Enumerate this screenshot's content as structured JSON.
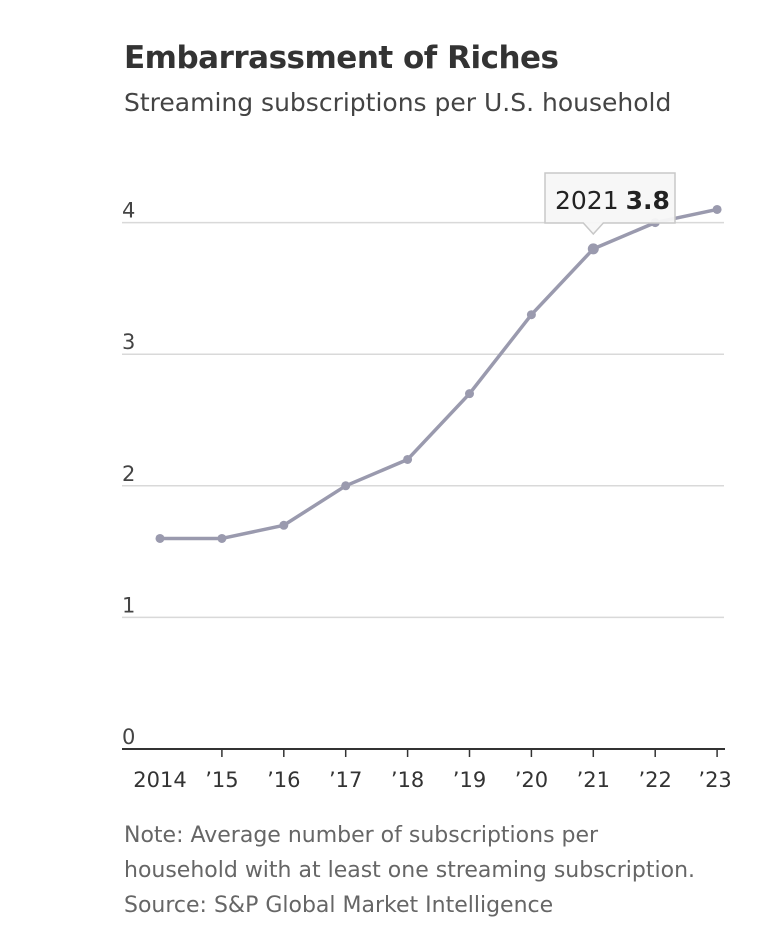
{
  "header": {
    "title": "Embarrassment of Riches",
    "subtitle": "Streaming subscriptions per U.S. household"
  },
  "tooltip": {
    "year": "2021",
    "value": "3.8"
  },
  "footer": {
    "note_line1": "Note: Average number of subscriptions per",
    "note_line2": "household with at least one streaming subscription.",
    "source": "Source: S&P Global Market Intelligence"
  },
  "colors": {
    "line": "#9a9aae",
    "grid": "#d9d9d9",
    "axis": "#333333",
    "tooltip_bg": "#f7f7f7",
    "tooltip_border": "#c8c8c8"
  },
  "chart_data": {
    "type": "line",
    "title": "Embarrassment of Riches",
    "subtitle": "Streaming subscriptions per U.S. household",
    "xlabel": "",
    "ylabel": "",
    "x": [
      2014,
      2015,
      2016,
      2017,
      2018,
      2019,
      2020,
      2021,
      2022,
      2023
    ],
    "x_tick_labels": [
      "2014",
      "’15",
      "’16",
      "’17",
      "’18",
      "’19",
      "’20",
      "’21",
      "’22",
      "’23"
    ],
    "y_ticks": [
      0,
      1,
      2,
      3,
      4
    ],
    "ylim": [
      0,
      4.1
    ],
    "grid": true,
    "series": [
      {
        "values": [
          1.6,
          1.6,
          1.7,
          2.0,
          2.2,
          2.7,
          3.3,
          3.8,
          4.0,
          4.1
        ]
      }
    ],
    "highlight": {
      "x": 2021,
      "value": 3.8
    }
  }
}
